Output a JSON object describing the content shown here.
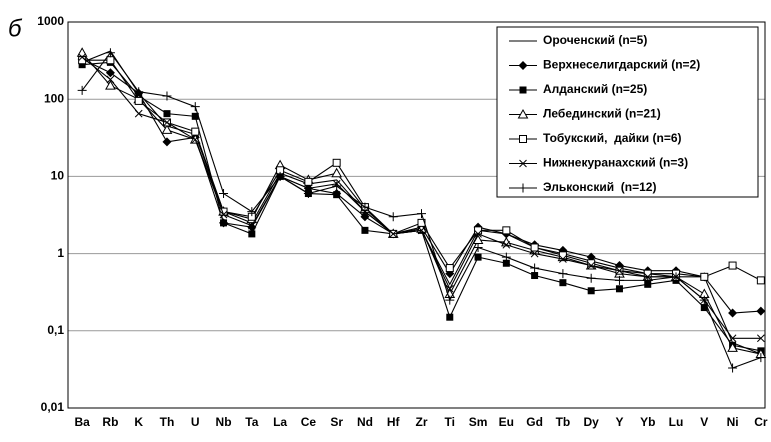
{
  "chart_data": {
    "type": "line",
    "annotation": "б",
    "log_scale": true,
    "grid": true,
    "categories": [
      "Ba",
      "Rb",
      "K",
      "Th",
      "U",
      "Nb",
      "Ta",
      "La",
      "Ce",
      "Sr",
      "Nd",
      "Hf",
      "Zr",
      "Ti",
      "Sm",
      "Eu",
      "Gd",
      "Tb",
      "Dy",
      "Y",
      "Yb",
      "Lu",
      "V",
      "Ni",
      "Cr"
    ],
    "ylim": [
      0.01,
      1000
    ],
    "yticks": [
      {
        "value": 0.01,
        "label": "0,01"
      },
      {
        "value": 0.1,
        "label": "0,1"
      },
      1,
      10,
      100,
      1000
    ],
    "legend": "upper right",
    "series": [
      {
        "name": "Ороченский (n=5)",
        "color": "#000000",
        "marker": "none",
        "values": [
          300,
          420,
          120,
          45,
          35,
          3.5,
          2.5,
          11,
          8,
          9,
          3.5,
          1.8,
          2,
          0.4,
          2,
          1.8,
          1.2,
          1,
          0.8,
          0.65,
          0.55,
          0.5,
          0.5,
          0.07,
          0.05
        ]
      },
      {
        "name": "Верхнеселигдарский (n=2)",
        "color": "#000000",
        "marker": "diamond",
        "values": [
          330,
          220,
          120,
          28,
          32,
          2.5,
          2.2,
          10,
          7,
          6,
          3,
          1.8,
          2.2,
          0.55,
          2.2,
          1.8,
          1.3,
          1.1,
          0.9,
          0.7,
          0.6,
          0.6,
          0.5,
          0.17,
          0.18
        ]
      },
      {
        "name": "Алданский (n=25)",
        "color": "#000000",
        "marker": "square",
        "values": [
          280,
          300,
          110,
          65,
          60,
          2.5,
          1.8,
          10,
          6,
          5.8,
          2,
          1.8,
          2,
          0.15,
          0.9,
          0.75,
          0.52,
          0.42,
          0.33,
          0.35,
          0.4,
          0.45,
          0.2,
          0.065,
          0.055
        ]
      },
      {
        "name": "Лебединский (n=21)",
        "color": "#000000",
        "marker": "triangle",
        "values": [
          400,
          150,
          100,
          40,
          30,
          3.5,
          2.8,
          14,
          9,
          11,
          3.8,
          1.8,
          2.1,
          0.3,
          1.5,
          1.4,
          1.1,
          0.9,
          0.7,
          0.55,
          0.5,
          0.5,
          0.3,
          0.06,
          0.05
        ]
      },
      {
        "name": "Тобукский,  дайки (n=6)",
        "color": "#000000",
        "marker": "open-square",
        "values": [
          320,
          320,
          95,
          50,
          38,
          3.5,
          3,
          12,
          8.5,
          15,
          4,
          1.8,
          2.5,
          0.65,
          2,
          2,
          1.2,
          0.95,
          0.75,
          0.6,
          0.55,
          0.55,
          0.5,
          0.7,
          0.45
        ]
      },
      {
        "name": "Нижнекуранахский (n=3)",
        "color": "#000000",
        "marker": "x",
        "values": [
          350,
          180,
          65,
          50,
          30,
          3.2,
          2.3,
          10,
          7,
          8,
          3.5,
          1.8,
          2,
          0.35,
          1.8,
          1.3,
          1,
          0.85,
          0.7,
          0.6,
          0.5,
          0.5,
          0.25,
          0.08,
          0.08
        ]
      },
      {
        "name": "Эльконский  (n=12)",
        "color": "#000000",
        "marker": "plus",
        "values": [
          130,
          400,
          125,
          110,
          80,
          6,
          3.5,
          10,
          6,
          7.5,
          4,
          3,
          3.3,
          0.25,
          1.2,
          0.9,
          0.65,
          0.55,
          0.48,
          0.45,
          0.45,
          0.5,
          0.25,
          0.033,
          0.045
        ]
      }
    ]
  }
}
